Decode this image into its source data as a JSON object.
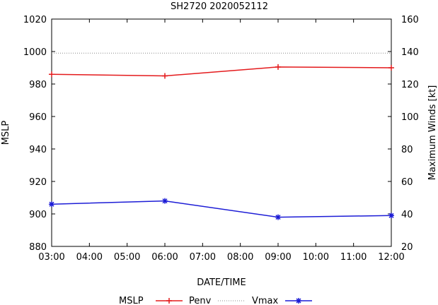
{
  "chart_data": {
    "type": "line",
    "title": "SH2720 2020052112",
    "xlabel": "DATE/TIME",
    "ylabel_left": "MSLP",
    "ylabel_right": "Maximum Winds [kt]",
    "x_categories": [
      "03:00",
      "04:00",
      "05:00",
      "06:00",
      "07:00",
      "08:00",
      "09:00",
      "10:00",
      "11:00",
      "12:00"
    ],
    "x_hours": [
      3,
      4,
      5,
      6,
      7,
      8,
      9,
      10,
      11,
      12
    ],
    "xlim": [
      3,
      12
    ],
    "ylim_left": [
      880,
      1020
    ],
    "yticks_left": [
      "880",
      "900",
      "920",
      "940",
      "960",
      "980",
      "1000",
      "1020"
    ],
    "ylim_right": [
      20,
      160
    ],
    "yticks_right": [
      "20",
      "40",
      "60",
      "80",
      "100",
      "120",
      "140",
      "160"
    ],
    "grid": false,
    "legend_position": "bottom",
    "legend": {
      "left_axis_label": "MSLP",
      "penv_label": "Penv",
      "vmax_label": "Vmax"
    },
    "colors": {
      "mslp": "#e41a1c",
      "penv": "#888888",
      "vmax": "#1c1cd6",
      "axes": "#000000"
    },
    "series": [
      {
        "name": "MSLP",
        "axis": "left",
        "marker": "plus",
        "x": [
          3,
          6,
          9,
          12
        ],
        "values": [
          986,
          985,
          990.5,
          990
        ]
      },
      {
        "name": "Penv",
        "axis": "left",
        "style": "dotted",
        "x": [
          3,
          12
        ],
        "values": [
          999,
          999
        ]
      },
      {
        "name": "Vmax",
        "axis": "right",
        "marker": "star",
        "x": [
          3,
          6,
          9,
          12
        ],
        "values": [
          46,
          48,
          38,
          39
        ]
      }
    ]
  }
}
